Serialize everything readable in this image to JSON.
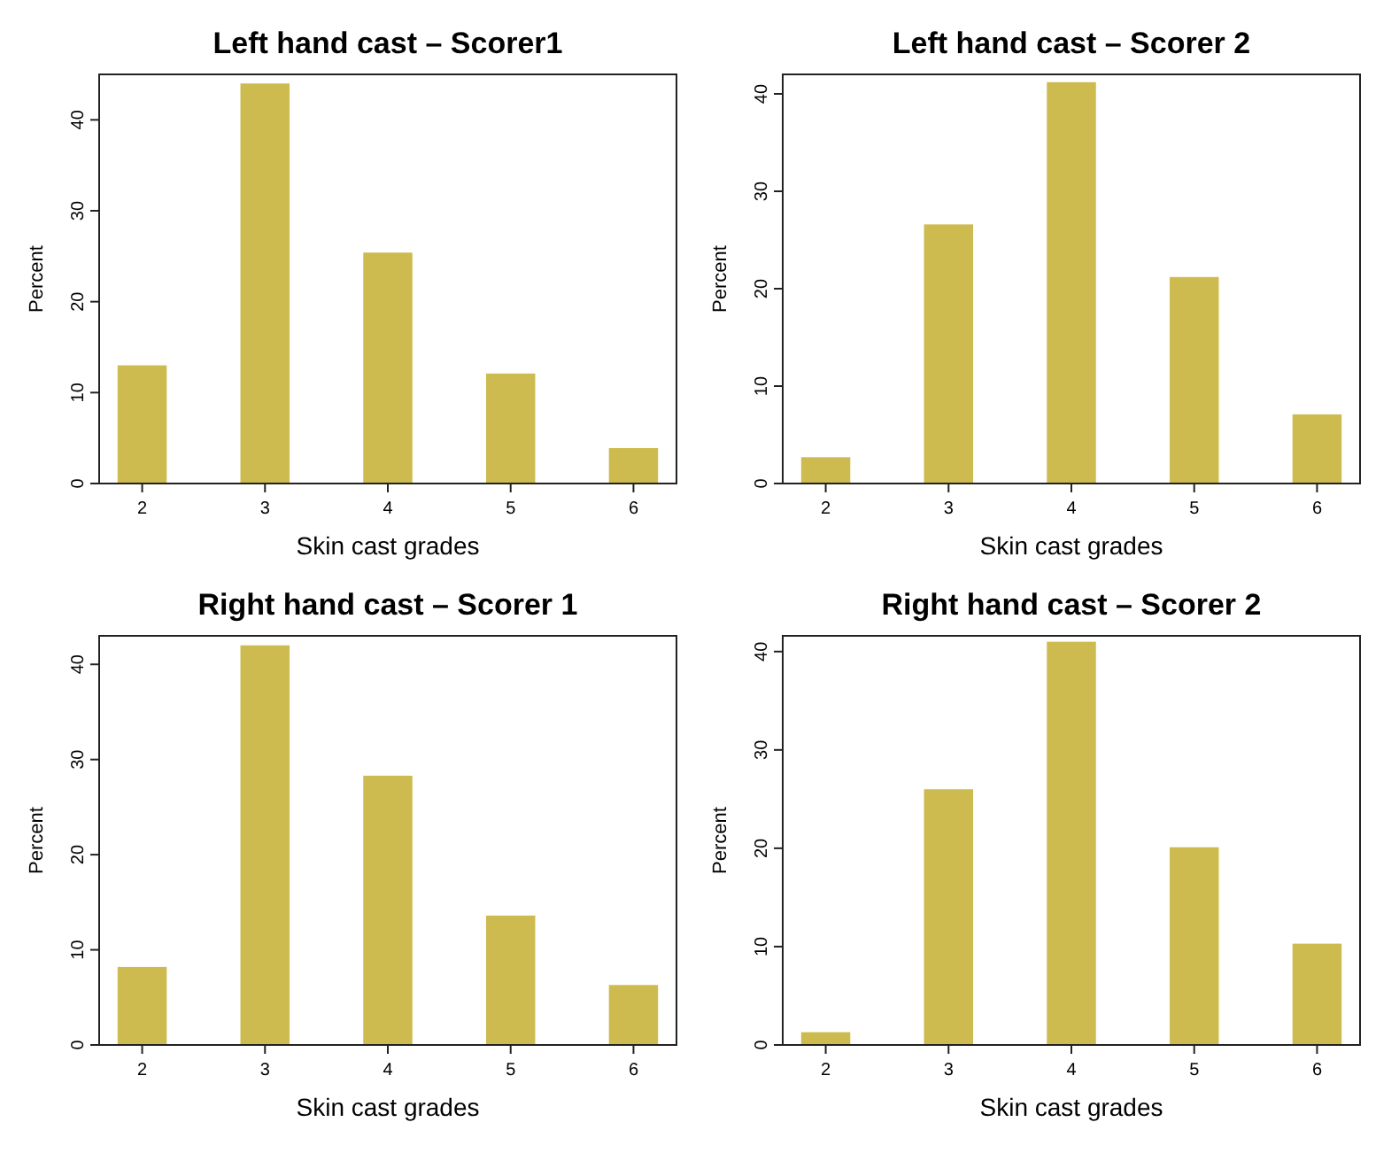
{
  "chart_data": [
    {
      "type": "bar",
      "title": "Left hand cast – Scorer1",
      "xlabel": "Skin cast grades",
      "ylabel": "Percent",
      "categories": [
        "2",
        "3",
        "4",
        "5",
        "6"
      ],
      "values": [
        13,
        44,
        25.4,
        12.1,
        3.9
      ],
      "color": "#cdbb4f",
      "ylim": [
        0,
        45
      ],
      "yticks": [
        0,
        10,
        20,
        30,
        40
      ],
      "grid": false
    },
    {
      "type": "bar",
      "title": "Left hand cast – Scorer 2",
      "xlabel": "Skin cast grades",
      "ylabel": "Percent",
      "categories": [
        "2",
        "3",
        "4",
        "5",
        "6"
      ],
      "values": [
        2.7,
        26.6,
        41.2,
        21.2,
        7.1
      ],
      "color": "#cdbb4f",
      "ylim": [
        0,
        42
      ],
      "yticks": [
        0,
        10,
        20,
        30,
        40
      ],
      "grid": false
    },
    {
      "type": "bar",
      "title": "Right hand cast – Scorer 1",
      "xlabel": "Skin cast grades",
      "ylabel": "Percent",
      "categories": [
        "2",
        "3",
        "4",
        "5",
        "6"
      ],
      "values": [
        8.2,
        42,
        28.3,
        13.6,
        6.3
      ],
      "color": "#cdbb4f",
      "ylim": [
        0,
        43
      ],
      "yticks": [
        0,
        10,
        20,
        30,
        40
      ],
      "grid": false
    },
    {
      "type": "bar",
      "title": "Right hand cast – Scorer 2",
      "xlabel": "Skin cast grades",
      "ylabel": "Percent",
      "categories": [
        "2",
        "3",
        "4",
        "5",
        "6"
      ],
      "values": [
        1.3,
        26,
        41,
        20.1,
        10.3
      ],
      "color": "#cdbb4f",
      "ylim": [
        0,
        41.6
      ],
      "yticks": [
        0,
        10,
        20,
        30,
        40
      ],
      "grid": false
    }
  ]
}
